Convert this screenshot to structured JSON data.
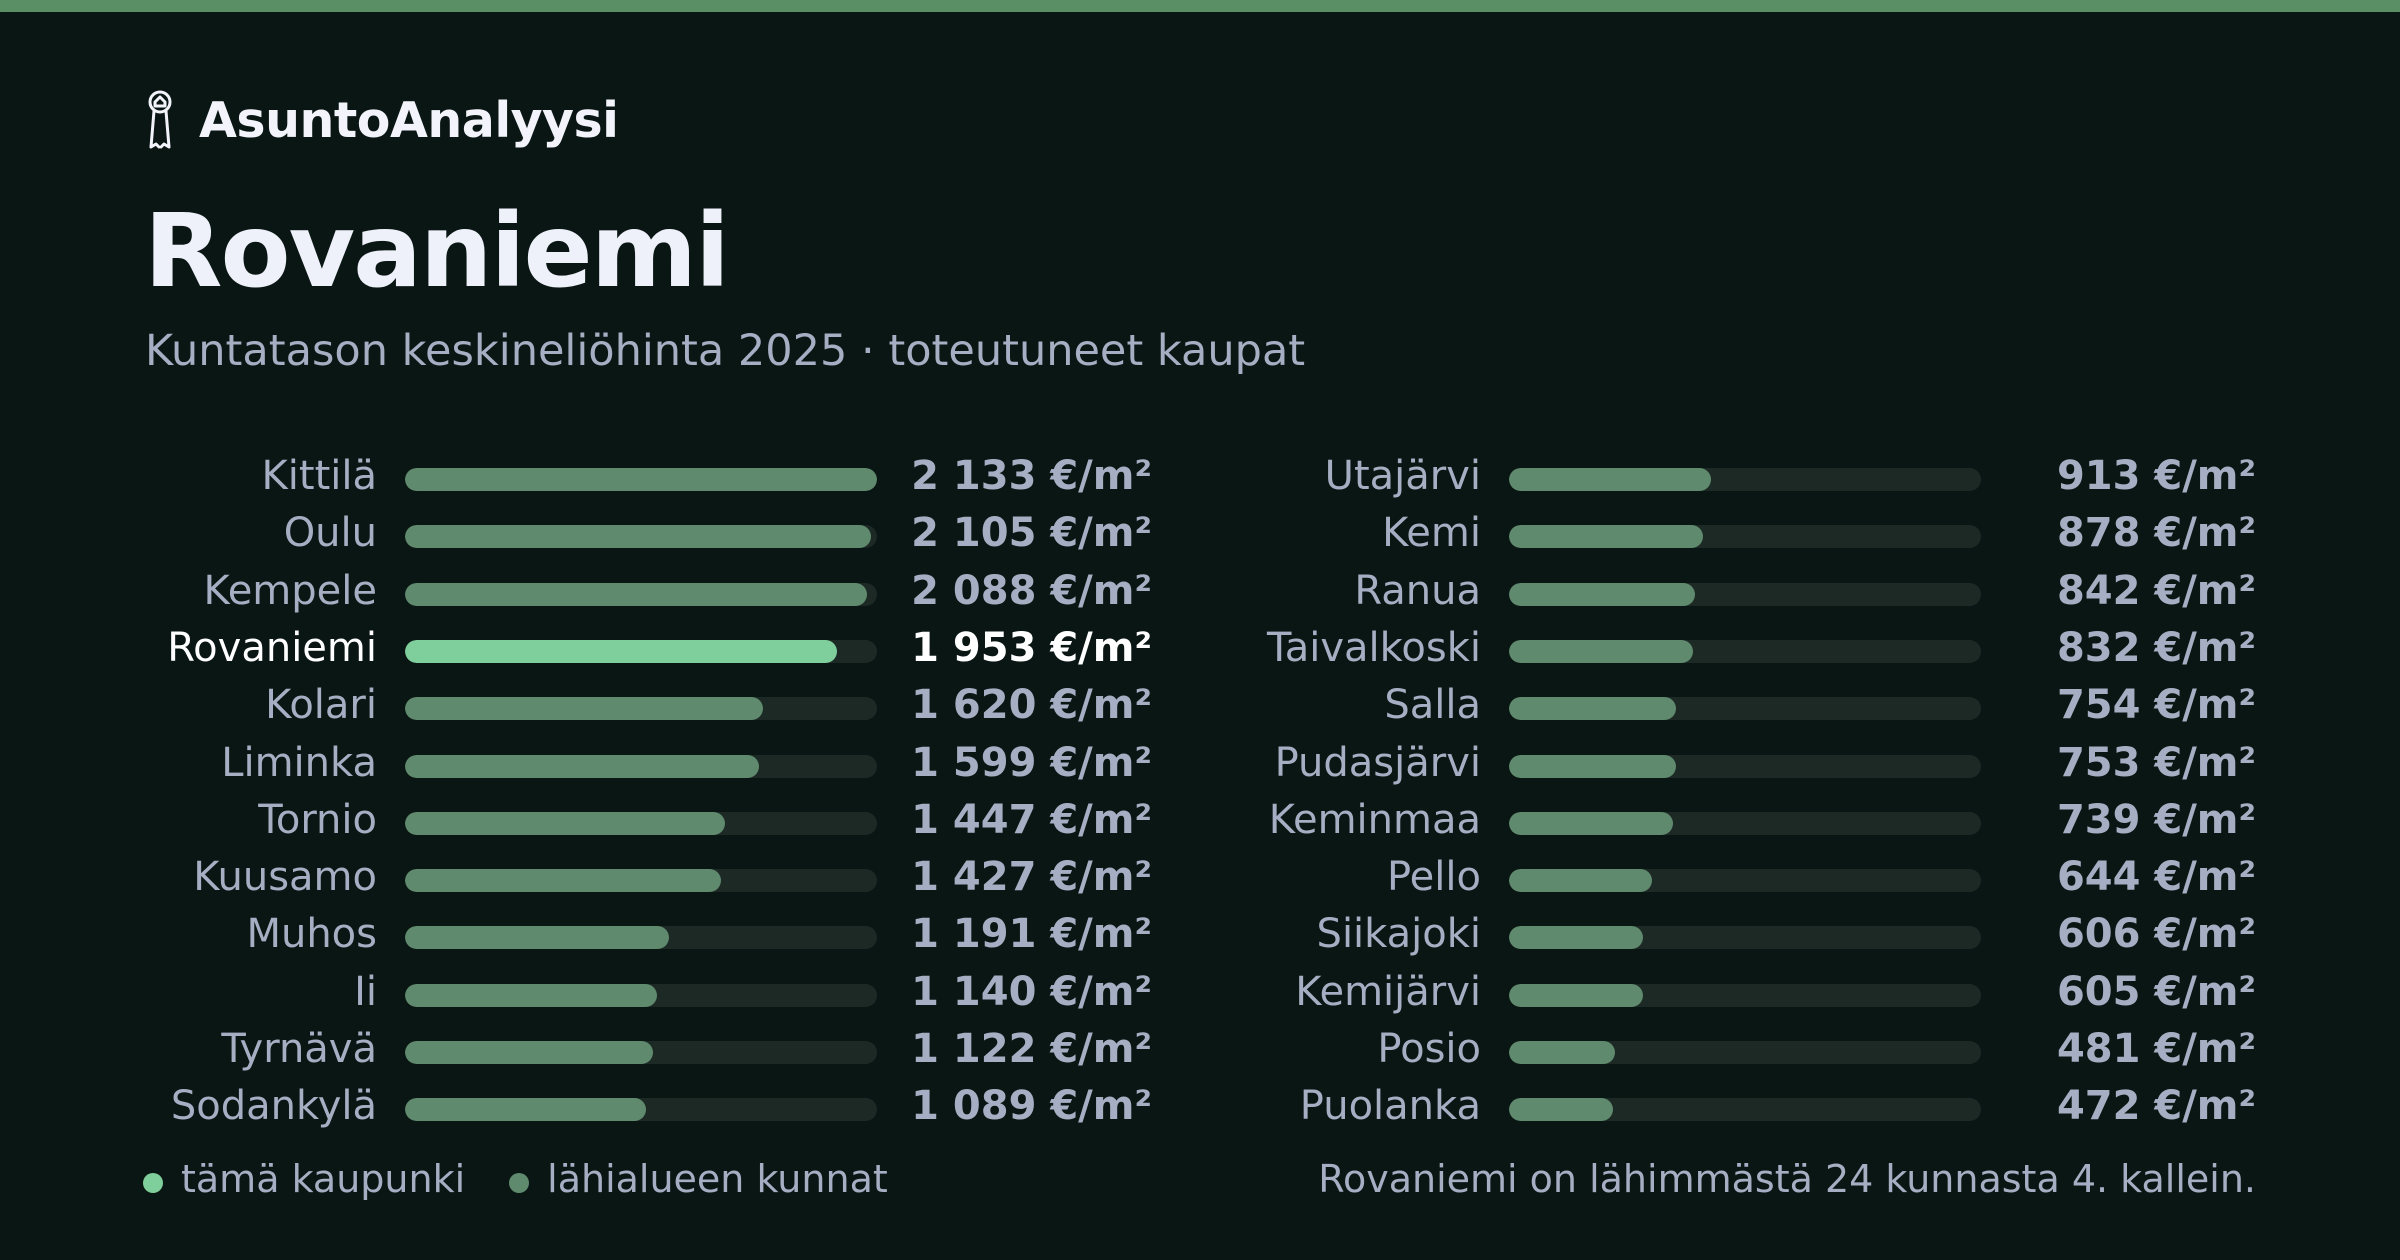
{
  "brand": {
    "name": "AsuntoAnalyysi",
    "icon": "house-key-icon"
  },
  "title": "Rovaniemi",
  "subtitle": "Kuntatason keskineliöhinta 2025 · toteutuneet kaupat",
  "colors": {
    "background": "#0a1613",
    "top_stripe": "#5a8e64",
    "highlight": "#7ecf9b",
    "neighbor": "#5f8a6e",
    "track": "#1c2925",
    "text_muted": "#a6aec4",
    "text_strong": "#ffffff"
  },
  "chart_data": {
    "type": "bar",
    "orientation": "horizontal",
    "unit": "€/m²",
    "xlim": [
      0,
      2133
    ],
    "highlight_category": "Rovaniemi",
    "categories": [
      "Kittilä",
      "Oulu",
      "Kempele",
      "Rovaniemi",
      "Kolari",
      "Liminka",
      "Tornio",
      "Kuusamo",
      "Muhos",
      "Ii",
      "Tyrnävä",
      "Sodankylä",
      "Utajärvi",
      "Kemi",
      "Ranua",
      "Taivalkoski",
      "Salla",
      "Pudasjärvi",
      "Keminmaa",
      "Pello",
      "Siikajoki",
      "Kemijärvi",
      "Posio",
      "Puolanka"
    ],
    "values": [
      2133,
      2105,
      2088,
      1953,
      1620,
      1599,
      1447,
      1427,
      1191,
      1140,
      1122,
      1089,
      913,
      878,
      842,
      832,
      754,
      753,
      739,
      644,
      606,
      605,
      481,
      472
    ],
    "value_labels": [
      "2 133 €/m²",
      "2 105 €/m²",
      "2 088 €/m²",
      "1 953 €/m²",
      "1 620 €/m²",
      "1 599 €/m²",
      "1 447 €/m²",
      "1 427 €/m²",
      "1 191 €/m²",
      "1 140 €/m²",
      "1 122 €/m²",
      "1 089 €/m²",
      "913 €/m²",
      "878 €/m²",
      "842 €/m²",
      "832 €/m²",
      "754 €/m²",
      "753 €/m²",
      "739 €/m²",
      "644 €/m²",
      "606 €/m²",
      "605 €/m²",
      "481 €/m²",
      "472 €/m²"
    ],
    "legend": [
      {
        "label": "tämä kaupunki",
        "color": "#7ecf9b"
      },
      {
        "label": "lähialueen kunnat",
        "color": "#5f8a6e"
      }
    ]
  },
  "note": "Rovaniemi on lähimmästä 24 kunnasta 4. kallein."
}
